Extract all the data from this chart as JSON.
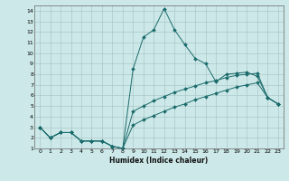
{
  "xlabel": "Humidex (Indice chaleur)",
  "bg_color": "#cde8e8",
  "grid_color": "#adc8c8",
  "line_color": "#1a6b6b",
  "xlim": [
    -0.5,
    23.5
  ],
  "ylim": [
    1,
    14.5
  ],
  "xticks": [
    0,
    1,
    2,
    3,
    4,
    5,
    6,
    7,
    8,
    9,
    10,
    11,
    12,
    13,
    14,
    15,
    16,
    17,
    18,
    19,
    20,
    21,
    22,
    23
  ],
  "yticks": [
    1,
    2,
    3,
    4,
    5,
    6,
    7,
    8,
    9,
    10,
    11,
    12,
    13,
    14
  ],
  "line1_x": [
    0,
    1,
    2,
    3,
    4,
    5,
    6,
    7,
    8,
    9,
    10,
    11,
    12,
    13,
    14,
    15,
    16,
    17,
    18,
    19,
    20,
    21,
    22,
    23
  ],
  "line1_y": [
    3.0,
    2.0,
    2.5,
    2.5,
    1.7,
    1.7,
    1.7,
    1.2,
    1.0,
    8.5,
    11.5,
    12.2,
    14.2,
    12.2,
    10.8,
    9.5,
    9.0,
    7.3,
    8.0,
    8.1,
    8.2,
    7.8,
    5.8,
    5.2
  ],
  "line2_x": [
    0,
    1,
    2,
    3,
    4,
    5,
    6,
    7,
    8,
    9,
    10,
    11,
    12,
    13,
    14,
    15,
    16,
    17,
    18,
    19,
    20,
    21,
    22,
    23
  ],
  "line2_y": [
    3.0,
    2.0,
    2.5,
    2.5,
    1.7,
    1.7,
    1.7,
    1.2,
    1.0,
    4.5,
    5.0,
    5.5,
    5.9,
    6.3,
    6.6,
    6.9,
    7.2,
    7.4,
    7.7,
    7.9,
    8.0,
    8.1,
    5.8,
    5.2
  ],
  "line3_x": [
    0,
    1,
    2,
    3,
    4,
    5,
    6,
    7,
    8,
    9,
    10,
    11,
    12,
    13,
    14,
    15,
    16,
    17,
    18,
    19,
    20,
    21,
    22,
    23
  ],
  "line3_y": [
    3.0,
    2.0,
    2.5,
    2.5,
    1.7,
    1.7,
    1.7,
    1.2,
    1.0,
    3.2,
    3.7,
    4.1,
    4.5,
    4.9,
    5.2,
    5.6,
    5.9,
    6.2,
    6.5,
    6.8,
    7.0,
    7.2,
    5.8,
    5.2
  ]
}
